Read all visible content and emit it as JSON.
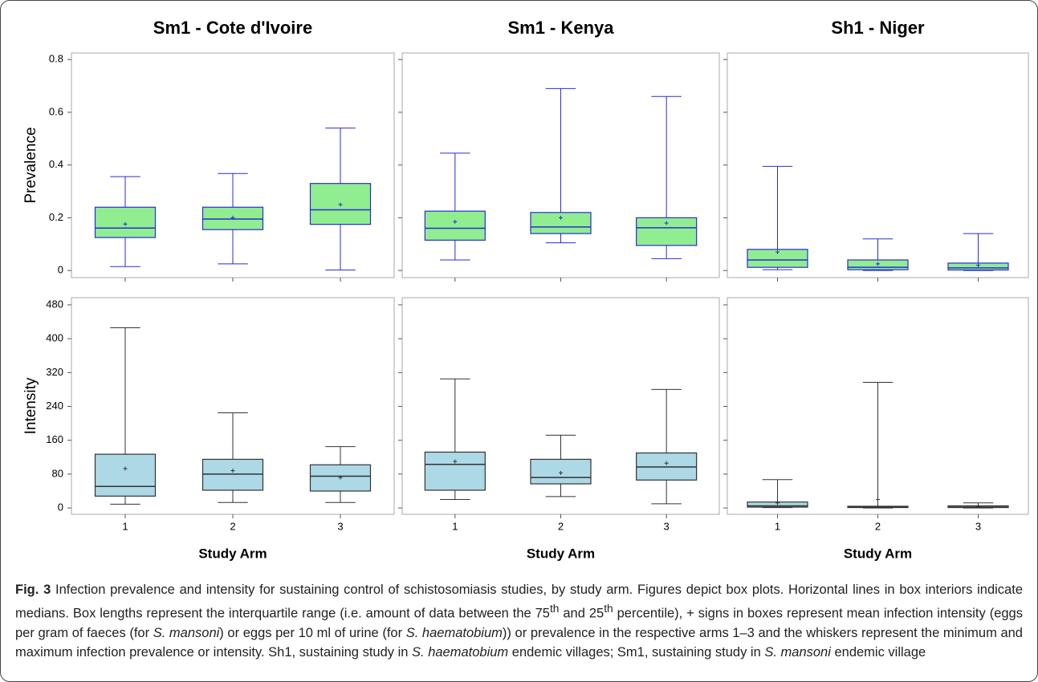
{
  "chart_data": [
    {
      "type": "box",
      "title": "Sm1 - Cote d'Ivoire",
      "ylabel": "Prevalence",
      "ylim": [
        -0.027,
        0.825
      ],
      "yticks": [
        0,
        0.2,
        0.4,
        0.6,
        0.8
      ],
      "fill": "#90ee90",
      "edge": "#2b2bd6",
      "boxes": [
        {
          "min": 0.015,
          "q1": 0.125,
          "median": 0.161,
          "q3": 0.24,
          "max": 0.356,
          "mean": 0.176
        },
        {
          "min": 0.025,
          "q1": 0.155,
          "median": 0.195,
          "q3": 0.24,
          "max": 0.368,
          "mean": 0.2
        },
        {
          "min": 0.002,
          "q1": 0.175,
          "median": 0.23,
          "q3": 0.33,
          "max": 0.54,
          "mean": 0.25
        }
      ]
    },
    {
      "type": "box",
      "title": "Sm1 - Kenya",
      "ylim": [
        -0.027,
        0.825
      ],
      "fill": "#90ee90",
      "edge": "#2b2bd6",
      "boxes": [
        {
          "min": 0.04,
          "q1": 0.115,
          "median": 0.16,
          "q3": 0.225,
          "max": 0.445,
          "mean": 0.185
        },
        {
          "min": 0.105,
          "q1": 0.14,
          "median": 0.165,
          "q3": 0.22,
          "max": 0.69,
          "mean": 0.2
        },
        {
          "min": 0.045,
          "q1": 0.095,
          "median": 0.162,
          "q3": 0.2,
          "max": 0.66,
          "mean": 0.18
        }
      ]
    },
    {
      "type": "box",
      "title": "Sh1 - Niger",
      "ylim": [
        -0.027,
        0.825
      ],
      "fill": "#90ee90",
      "edge": "#2b2bd6",
      "boxes": [
        {
          "min": 0.003,
          "q1": 0.012,
          "median": 0.04,
          "q3": 0.08,
          "max": 0.395,
          "mean": 0.07
        },
        {
          "min": 0.0,
          "q1": 0.003,
          "median": 0.012,
          "q3": 0.04,
          "max": 0.12,
          "mean": 0.025
        },
        {
          "min": 0.0,
          "q1": 0.002,
          "median": 0.01,
          "q3": 0.028,
          "max": 0.14,
          "mean": 0.02
        }
      ]
    },
    {
      "type": "box",
      "ylabel": "Intensity",
      "xlabel": "Study Arm",
      "categories": [
        "1",
        "2",
        "3"
      ],
      "ylim": [
        -15,
        497
      ],
      "yticks": [
        0,
        80,
        160,
        240,
        320,
        400,
        480
      ],
      "fill": "#add8e6",
      "edge": "#333333",
      "boxes": [
        {
          "min": 9,
          "q1": 28,
          "median": 51,
          "q3": 127,
          "max": 426,
          "mean": 93
        },
        {
          "min": 13,
          "q1": 42,
          "median": 80,
          "q3": 115,
          "max": 225,
          "mean": 88
        },
        {
          "min": 13,
          "q1": 40,
          "median": 75,
          "q3": 102,
          "max": 145,
          "mean": 72
        }
      ]
    },
    {
      "type": "box",
      "xlabel": "Study Arm",
      "categories": [
        "1",
        "2",
        "3"
      ],
      "ylim": [
        -15,
        497
      ],
      "fill": "#add8e6",
      "edge": "#333333",
      "boxes": [
        {
          "min": 20,
          "q1": 42,
          "median": 103,
          "q3": 132,
          "max": 305,
          "mean": 110
        },
        {
          "min": 27,
          "q1": 57,
          "median": 72,
          "q3": 115,
          "max": 172,
          "mean": 83
        },
        {
          "min": 10,
          "q1": 66,
          "median": 97,
          "q3": 130,
          "max": 280,
          "mean": 106
        }
      ]
    },
    {
      "type": "box",
      "xlabel": "Study Arm",
      "categories": [
        "1",
        "2",
        "3"
      ],
      "ylim": [
        -15,
        497
      ],
      "fill": "#add8e6",
      "edge": "#333333",
      "boxes": [
        {
          "min": 1,
          "q1": 2,
          "median": 5,
          "q3": 14,
          "max": 67,
          "mean": 12
        },
        {
          "min": 0,
          "q1": 1,
          "median": 2,
          "q3": 4,
          "max": 297,
          "mean": 20
        },
        {
          "min": 0,
          "q1": 1,
          "median": 2,
          "q3": 5,
          "max": 12,
          "mean": 4
        }
      ]
    }
  ],
  "caption": {
    "label": "Fig. 3",
    "segments": [
      {
        "text": " Infection prevalence and intensity for sustaining control of schistosomiasis studies, by study arm. Figures depict box plots. Horizontal lines in box interiors indicate medians. Box lengths represent the interquartile range (i.e. amount of data between the 75"
      },
      {
        "text": "th",
        "sup": true
      },
      {
        "text": " and 25"
      },
      {
        "text": "th",
        "sup": true
      },
      {
        "text": " percentile), + signs in boxes represent mean infection intensity (eggs per gram of faeces (for "
      },
      {
        "text": "S. mansoni",
        "italic": true
      },
      {
        "text": ") or eggs per 10 ml of urine (for "
      },
      {
        "text": "S. haematobium",
        "italic": true
      },
      {
        "text": ")) or prevalence in the respective arms 1–3 and the whiskers represent the minimum and maximum infection prevalence or intensity. Sh1, sustaining study in "
      },
      {
        "text": "S. haematobium",
        "italic": true
      },
      {
        "text": " endemic villages; Sm1, sustaining study in "
      },
      {
        "text": "S. mansoni",
        "italic": true
      },
      {
        "text": " endemic village"
      }
    ]
  }
}
